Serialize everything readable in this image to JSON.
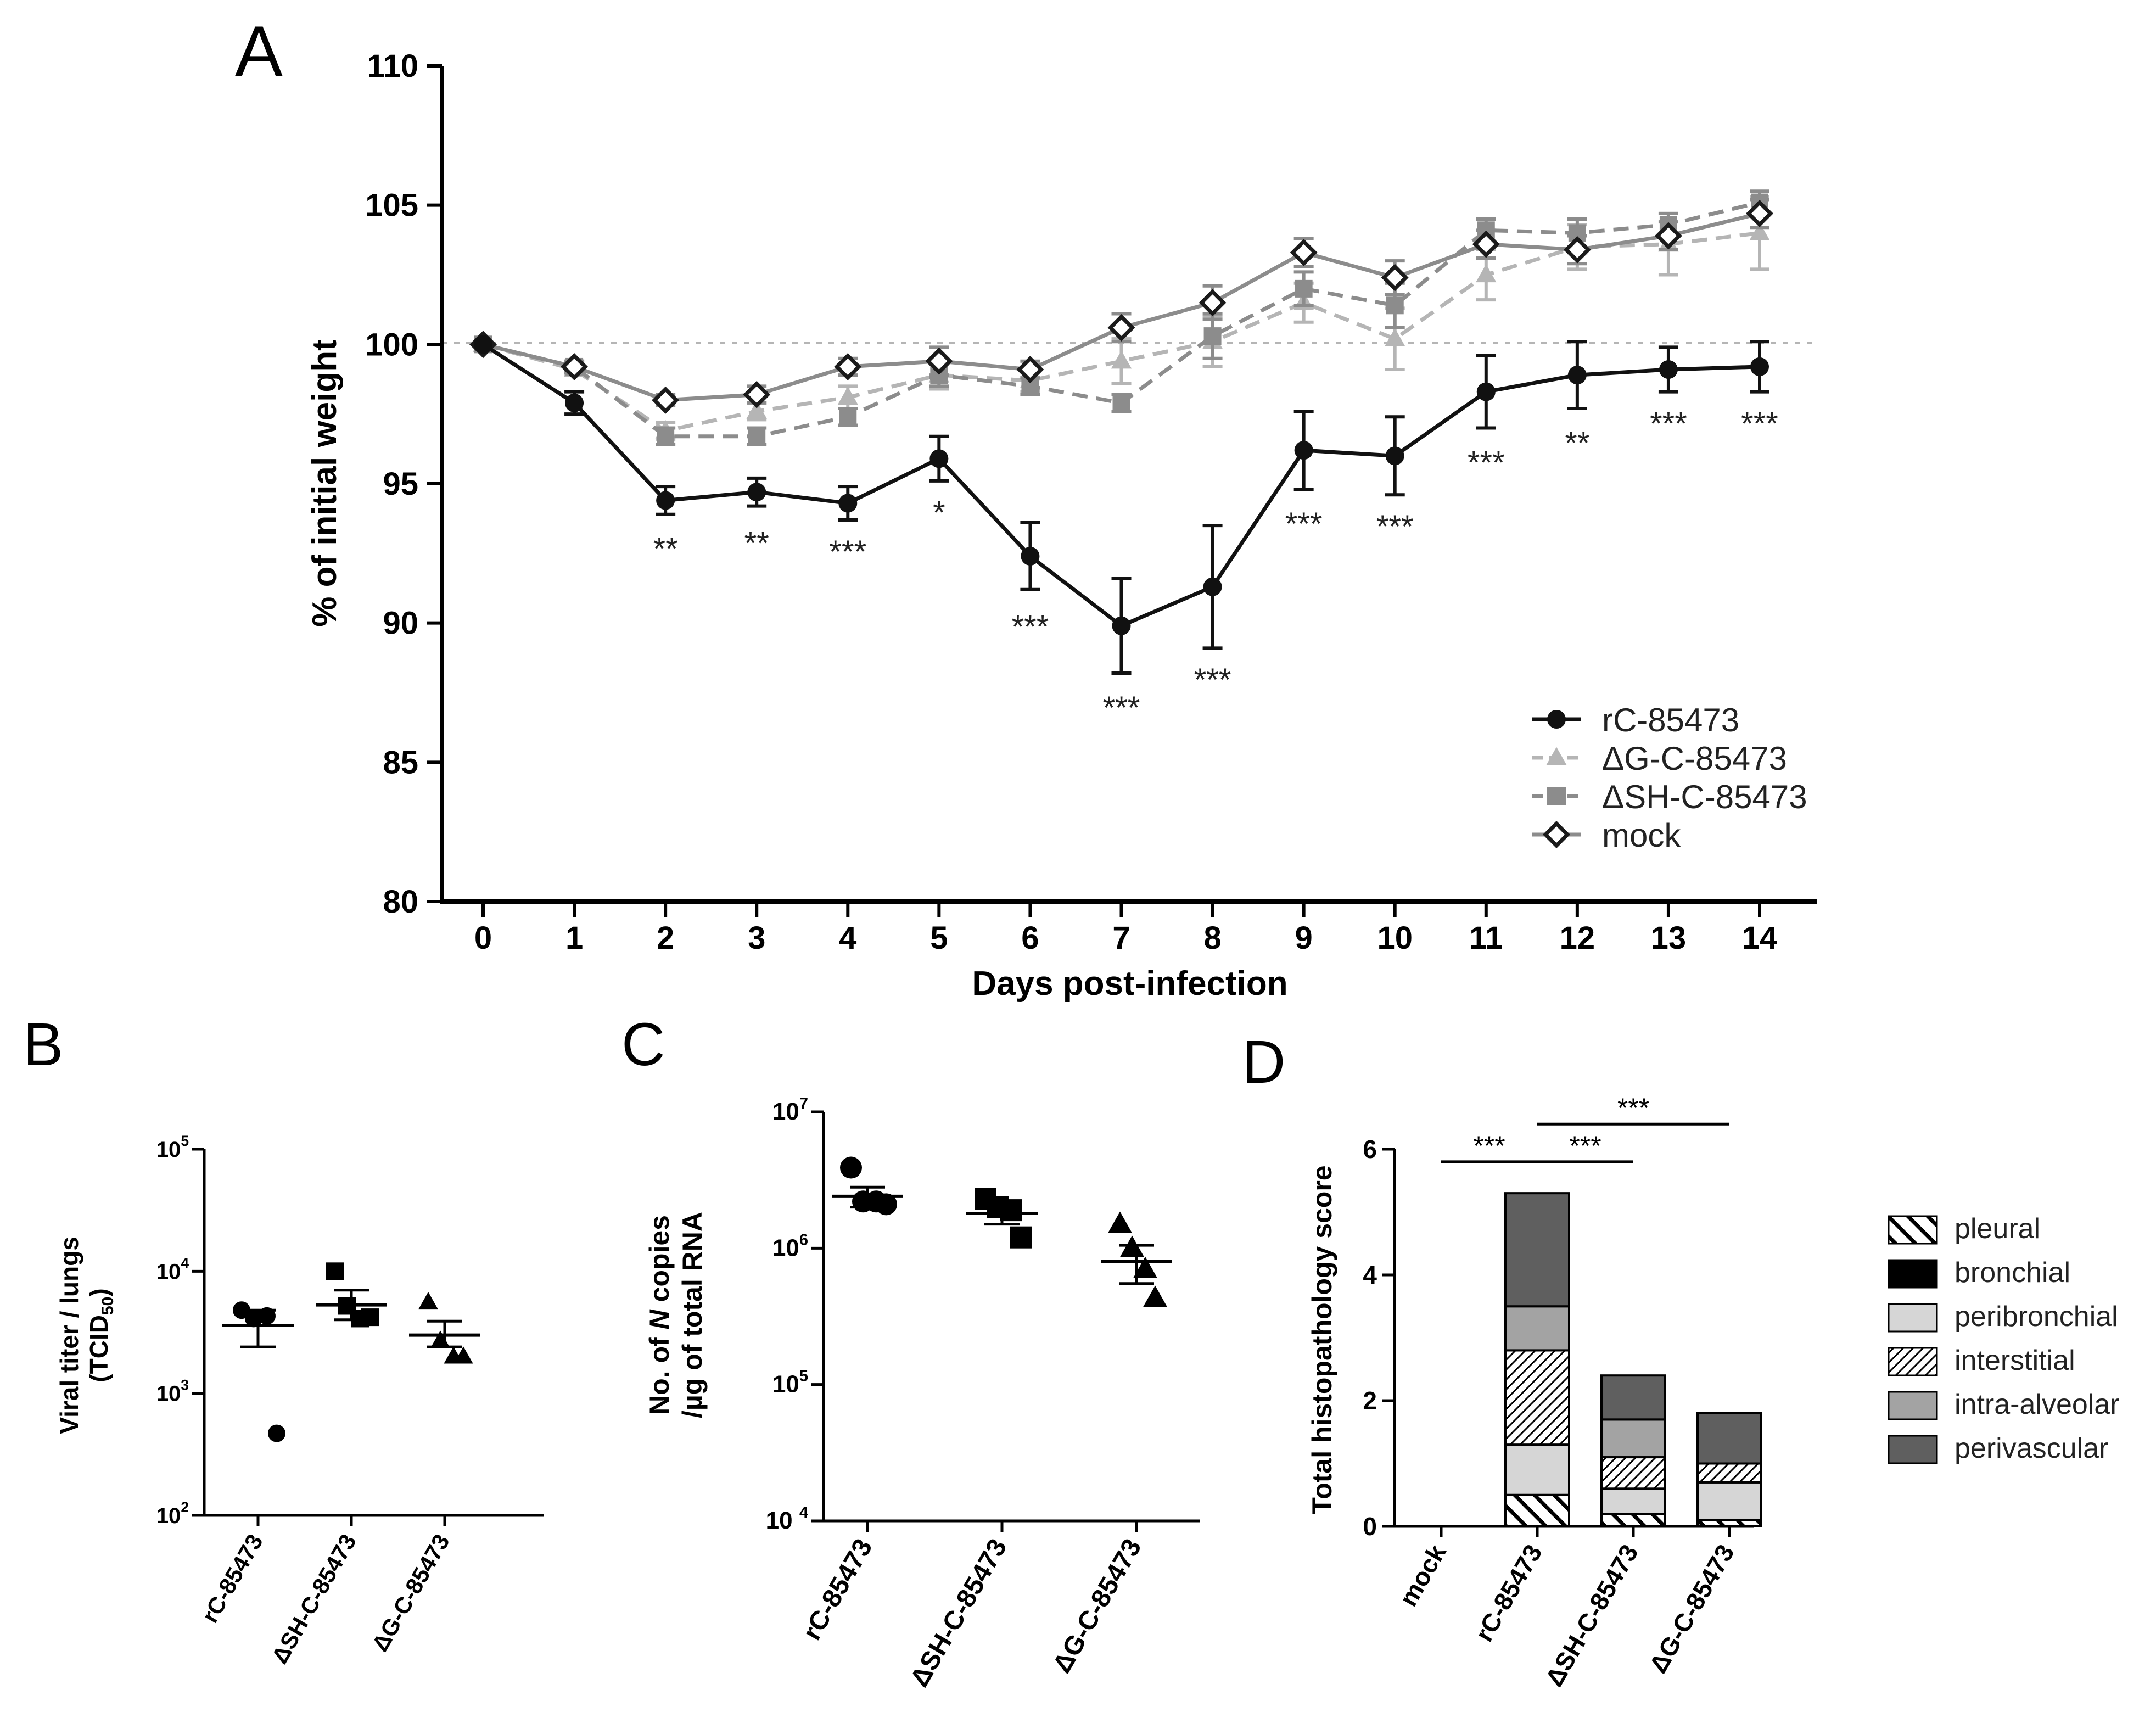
{
  "panel_labels": {
    "A": "A",
    "B": "B",
    "C": "C",
    "D": "D"
  },
  "chart_data": [
    {
      "panel": "A",
      "type": "line",
      "xlabel": "Days post-infection",
      "ylabel": "% of initial weight",
      "xlim": [
        0,
        14
      ],
      "ylim": [
        80,
        110
      ],
      "x": [
        0,
        1,
        2,
        3,
        4,
        5,
        6,
        7,
        8,
        9,
        10,
        11,
        12,
        13,
        14
      ],
      "x_ticks": [
        "0",
        "1",
        "2",
        "3",
        "4",
        "5",
        "6",
        "7",
        "8",
        "9",
        "10",
        "11",
        "12",
        "13",
        "14"
      ],
      "y_ticks": [
        "80",
        "85",
        "90",
        "95",
        "100",
        "105",
        "110"
      ],
      "reference_line": 100,
      "series": [
        {
          "name": "rC-85473",
          "color": "#111111",
          "dash": "solid",
          "marker": "circle",
          "values": [
            100,
            97.9,
            94.4,
            94.7,
            94.3,
            95.9,
            92.4,
            89.9,
            91.3,
            96.2,
            96.0,
            98.3,
            98.9,
            99.1,
            99.2
          ],
          "errors": [
            0,
            0.4,
            0.5,
            0.5,
            0.6,
            0.8,
            1.2,
            1.7,
            2.2,
            1.4,
            1.4,
            1.3,
            1.2,
            0.8,
            0.9
          ]
        },
        {
          "name": "ΔG-C-85473",
          "color": "#b5b5b5",
          "dash": "dashed",
          "marker": "triangle",
          "values": [
            100,
            99.1,
            96.9,
            97.6,
            98.1,
            98.9,
            98.7,
            99.4,
            100.1,
            101.5,
            100.2,
            102.5,
            103.5,
            103.6,
            104.0
          ],
          "errors": [
            0,
            0.2,
            0.3,
            0.3,
            0.4,
            0.5,
            0.4,
            0.8,
            0.9,
            0.7,
            1.1,
            0.9,
            0.8,
            1.1,
            1.3
          ]
        },
        {
          "name": "ΔSH-C-85473",
          "color": "#8c8c8c",
          "dash": "dashed",
          "marker": "square",
          "values": [
            100,
            99.2,
            96.7,
            96.7,
            97.4,
            98.9,
            98.5,
            97.9,
            100.3,
            102.0,
            101.4,
            104.1,
            104.0,
            104.3,
            105.1
          ],
          "errors": [
            0,
            0.2,
            0.3,
            0.3,
            0.3,
            0.4,
            0.3,
            0.3,
            0.8,
            0.6,
            0.8,
            0.4,
            0.5,
            0.4,
            0.4
          ]
        },
        {
          "name": "mock",
          "color": "#8c8c8c",
          "dash": "solid",
          "marker": "diamond",
          "values": [
            100,
            99.2,
            98.0,
            98.2,
            99.2,
            99.4,
            99.1,
            100.6,
            101.5,
            103.3,
            102.4,
            103.6,
            103.4,
            103.9,
            104.7
          ],
          "errors": [
            0,
            0.2,
            0.2,
            0.3,
            0.3,
            0.5,
            0.3,
            0.5,
            0.6,
            0.5,
            0.6,
            0.5,
            0.5,
            0.5,
            0.5
          ]
        }
      ],
      "annotations": [
        {
          "x": 2,
          "y": 92.7,
          "text": "**"
        },
        {
          "x": 3,
          "y": 92.9,
          "text": "**"
        },
        {
          "x": 4,
          "y": 92.6,
          "text": "***"
        },
        {
          "x": 5,
          "y": 94.0,
          "text": "*"
        },
        {
          "x": 6,
          "y": 89.9,
          "text": "***"
        },
        {
          "x": 7,
          "y": 87.0,
          "text": "***"
        },
        {
          "x": 8,
          "y": 88.0,
          "text": "***"
        },
        {
          "x": 9,
          "y": 93.6,
          "text": "***"
        },
        {
          "x": 10,
          "y": 93.5,
          "text": "***"
        },
        {
          "x": 11,
          "y": 95.8,
          "text": "***"
        },
        {
          "x": 12,
          "y": 96.5,
          "text": "**"
        },
        {
          "x": 13,
          "y": 97.2,
          "text": "***"
        },
        {
          "x": 14,
          "y": 97.2,
          "text": "***"
        }
      ],
      "legend": "bottom-right"
    },
    {
      "panel": "B",
      "type": "scatter",
      "ylabel_line1": "Viral titer / lungs",
      "ylabel_line2": "(TCID",
      "ylabel_sub": "50",
      "ylabel_close": ")",
      "scale": "log",
      "ylim_exp": [
        2,
        5
      ],
      "y_ticks": [
        {
          "base": "10",
          "exp": "5",
          "v": 5
        },
        {
          "base": "10",
          "exp": "4",
          "v": 4
        },
        {
          "base": "10",
          "exp": "3",
          "v": 3
        },
        {
          "base": "10",
          "exp": "2",
          "v": 2
        }
      ],
      "categories": [
        "rC-85473",
        "ΔSH-C-85473",
        "ΔG-C-85473"
      ],
      "markers": [
        "circle",
        "square",
        "triangle"
      ],
      "points": [
        [
          4800,
          4100,
          4300,
          470
        ],
        [
          10000,
          5200,
          4100,
          4200
        ],
        [
          5600,
          2700,
          2000,
          2000
        ]
      ],
      "mean": [
        3600,
        5300,
        3000
      ],
      "sem_low": [
        2400,
        4000,
        2400
      ],
      "sem_high": [
        4800,
        7000,
        3900
      ]
    },
    {
      "panel": "C",
      "type": "scatter",
      "ylabel_line1_pre": "No. of ",
      "ylabel_line1_em": "N",
      "ylabel_line1_post": " copies",
      "ylabel_line2": "/µg of total RNA",
      "scale": "log",
      "ylim_exp": [
        4,
        7
      ],
      "y_ticks": [
        {
          "base": "10",
          "exp": "7",
          "v": 7
        },
        {
          "base": "10",
          "exp": "6",
          "v": 6
        },
        {
          "base": "10",
          "exp": "5",
          "v": 5
        },
        {
          "base": "10 ",
          "exp": "4",
          "v": 4
        }
      ],
      "categories": [
        "rC-85473",
        "ΔSH-C-85473",
        "ΔG-C-85473"
      ],
      "markers": [
        "circle",
        "square",
        "triangle"
      ],
      "points": [
        [
          3900000,
          2200000,
          2200000,
          2100000
        ],
        [
          2300000,
          2000000,
          1900000,
          1200000
        ],
        [
          1500000,
          1000000,
          700000,
          430000
        ]
      ],
      "mean": [
        2400000,
        1800000,
        800000
      ],
      "sem_low": [
        2000000,
        1500000,
        550000
      ],
      "sem_high": [
        2800000,
        2100000,
        1050000
      ]
    },
    {
      "panel": "D",
      "type": "bar",
      "stacked": true,
      "ylabel": "Total histopathology score",
      "ylim": [
        0,
        6
      ],
      "y_ticks": [
        "0",
        "2",
        "4",
        "6"
      ],
      "categories": [
        "mock",
        "rC-85473",
        "ΔSH-C-85473",
        "ΔG-C-85473"
      ],
      "series": [
        {
          "name": "pleural",
          "pattern": "pleural",
          "values": [
            0,
            0.5,
            0.2,
            0.1
          ]
        },
        {
          "name": "bronchial",
          "pattern": "bronchial",
          "values": [
            0,
            0,
            0,
            0
          ]
        },
        {
          "name": "peribronchial",
          "pattern": "peribronchial",
          "values": [
            0,
            0.8,
            0.4,
            0.6
          ]
        },
        {
          "name": "interstitial",
          "pattern": "interstitial",
          "values": [
            0,
            1.5,
            0.5,
            0.3
          ]
        },
        {
          "name": "intra-alveolar",
          "pattern": "intra-alveolar",
          "values": [
            0,
            0.7,
            0.6,
            0
          ]
        },
        {
          "name": "perivascular",
          "pattern": "perivascular",
          "values": [
            0,
            1.8,
            0.7,
            0.8
          ]
        }
      ],
      "significance": [
        {
          "from": 0,
          "to": 1,
          "y": 5.8,
          "text": "***"
        },
        {
          "from": 1,
          "to": 2,
          "y": 5.8,
          "text": "***"
        },
        {
          "from": 1,
          "to": 3,
          "y": 6.4,
          "text": "***"
        }
      ],
      "legend": "right"
    }
  ]
}
